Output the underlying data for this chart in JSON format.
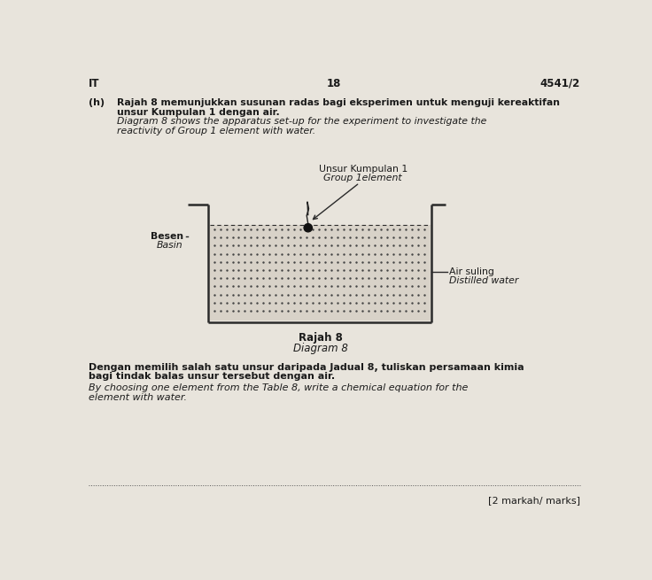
{
  "bg_color": "#e8e4dc",
  "page_color": "#e8e4dc",
  "page_number": "18",
  "ref_number": "4541/2",
  "header_left": "IT",
  "part_label": "(h)",
  "malay_text_1": "Rajah 8 memunjukkan susunan radas bagi eksperimen untuk menguji kereaktifan",
  "malay_text_2": "unsur Kumpulan 1 dengan air.",
  "english_text_1": "Diagram 8 shows the apparatus set-up for the experiment to investigate the",
  "english_text_2": "reactivity of Group 1 element with water.",
  "label_unsur_1": "Unsur Kumpulan 1",
  "label_unsur_2": "Group 1element",
  "label_besen_1": "Besen",
  "label_besen_2": "Basin",
  "label_air_1": "Air suling",
  "label_air_2": "Distilled water",
  "caption_1": "Rajah 8",
  "caption_2": "Diagram 8",
  "question_malay_1": "Dengan memilih salah satu unsur daripada Jadual 8, tuliskan persamaan kimia",
  "question_malay_2": "bagi tindak balas unsur tersebut dengan air.",
  "question_english_1": "By choosing one element from the Table 8, write a chemical equation for the",
  "question_english_2": "element with water.",
  "marks_text": "[2 markah/ marks]",
  "text_color": "#1a1a1a",
  "line_color": "#2a2a2a",
  "dot_color": "#444444"
}
